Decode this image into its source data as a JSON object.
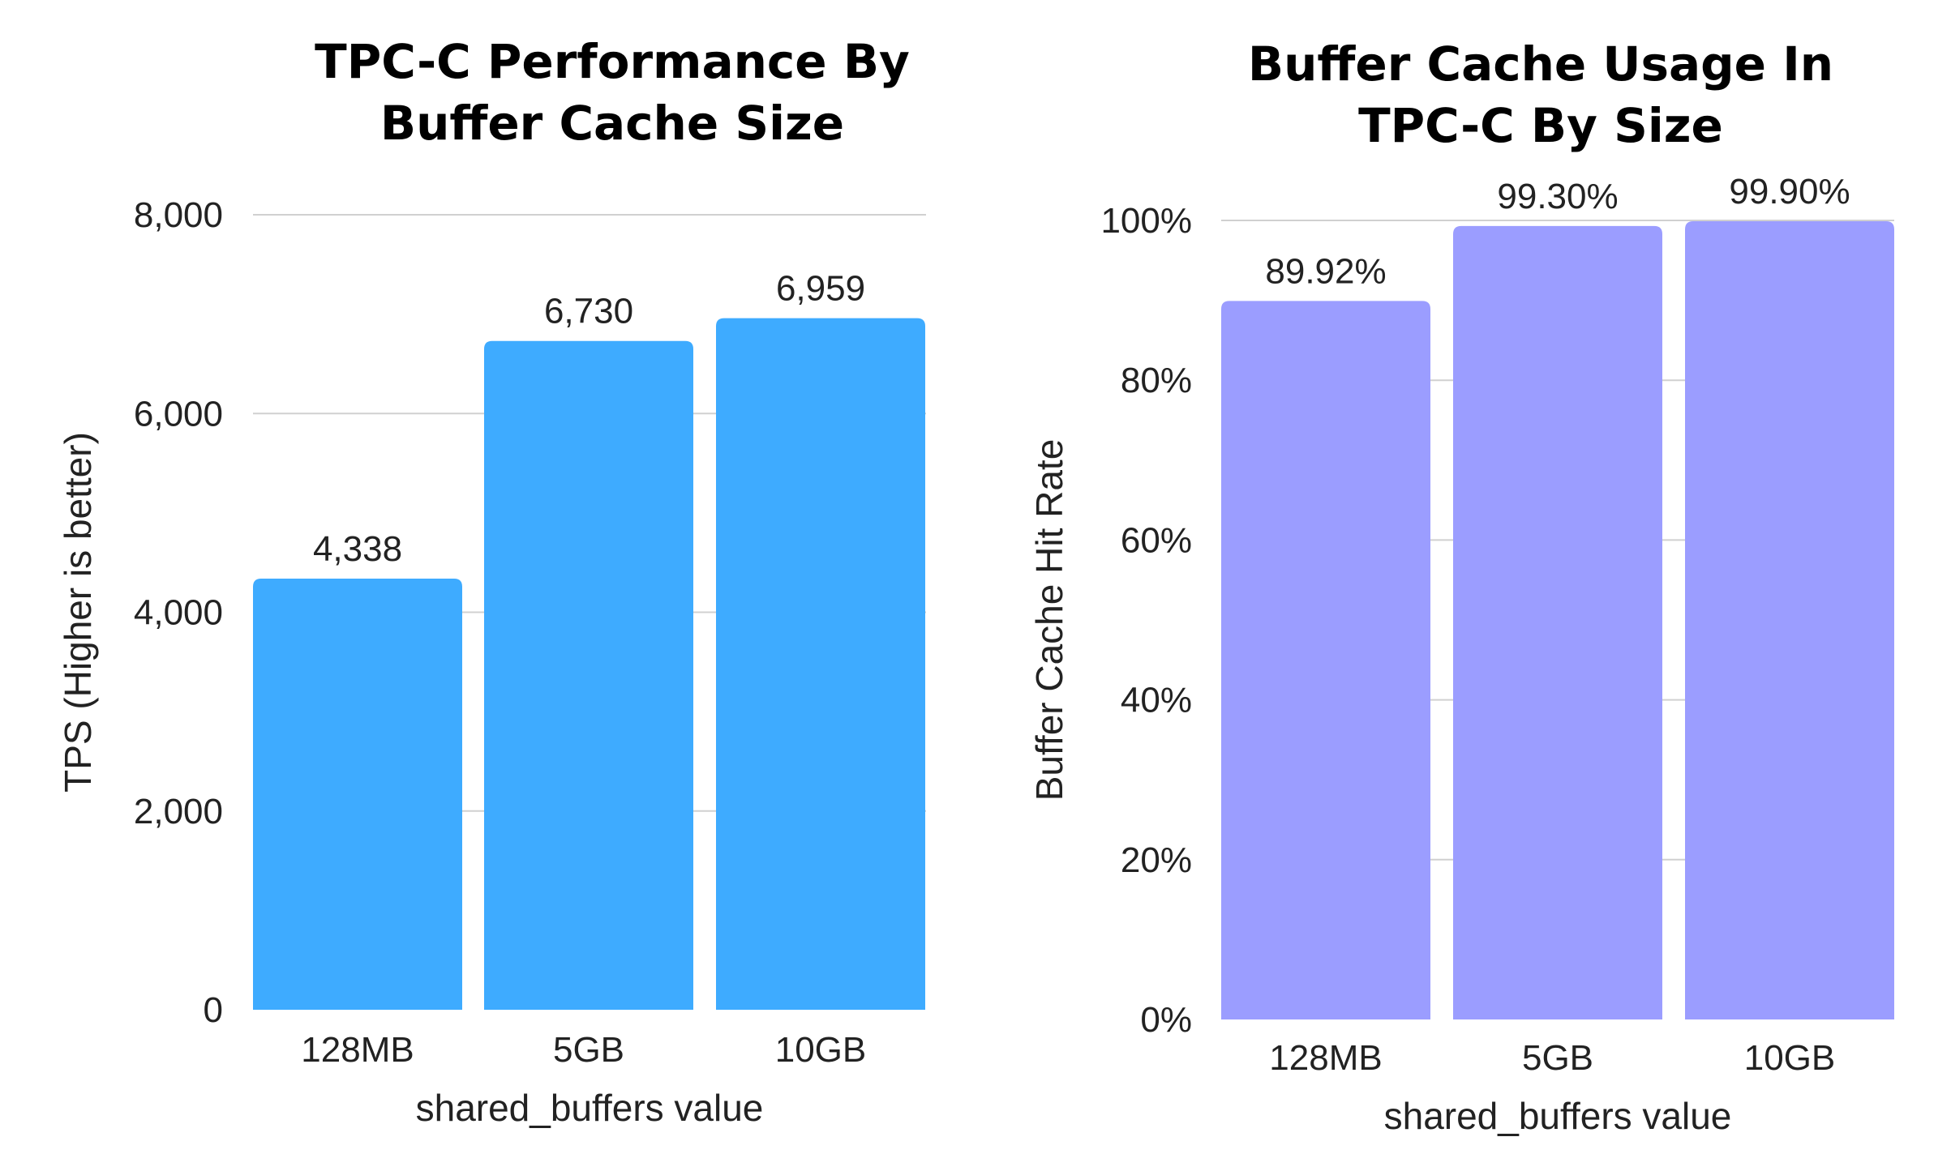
{
  "chart_data": [
    {
      "type": "bar",
      "title_lines": [
        "TPC-C Performance By",
        "Buffer Cache Size"
      ],
      "xlabel": "shared_buffers value",
      "ylabel": "TPS (Higher is better)",
      "categories": [
        "128MB",
        "5GB",
        "10GB"
      ],
      "values": [
        4338,
        6730,
        6959
      ],
      "data_labels": [
        "4,338",
        "6,730",
        "6,959"
      ],
      "ylim": [
        0,
        8000
      ],
      "yticks": [
        0,
        2000,
        4000,
        6000,
        8000
      ],
      "ytick_labels": [
        "0",
        "2,000",
        "4,000",
        "6,000",
        "8,000"
      ],
      "grid": true,
      "legend": "none",
      "bar_color": "#3eabff"
    },
    {
      "type": "bar",
      "title_lines": [
        "Buffer Cache Usage In",
        "TPC-C By Size"
      ],
      "xlabel": "shared_buffers value",
      "ylabel": "Buffer Cache Hit Rate",
      "categories": [
        "128MB",
        "5GB",
        "10GB"
      ],
      "values": [
        89.92,
        99.3,
        99.9
      ],
      "data_labels": [
        "89.92%",
        "99.30%",
        "99.90%"
      ],
      "ylim": [
        0,
        100
      ],
      "yticks": [
        0,
        20,
        40,
        60,
        80,
        100
      ],
      "ytick_labels": [
        "0%",
        "20%",
        "40%",
        "60%",
        "80%",
        "100%"
      ],
      "grid": true,
      "legend": "none",
      "bar_color": "#9b9dff"
    }
  ]
}
